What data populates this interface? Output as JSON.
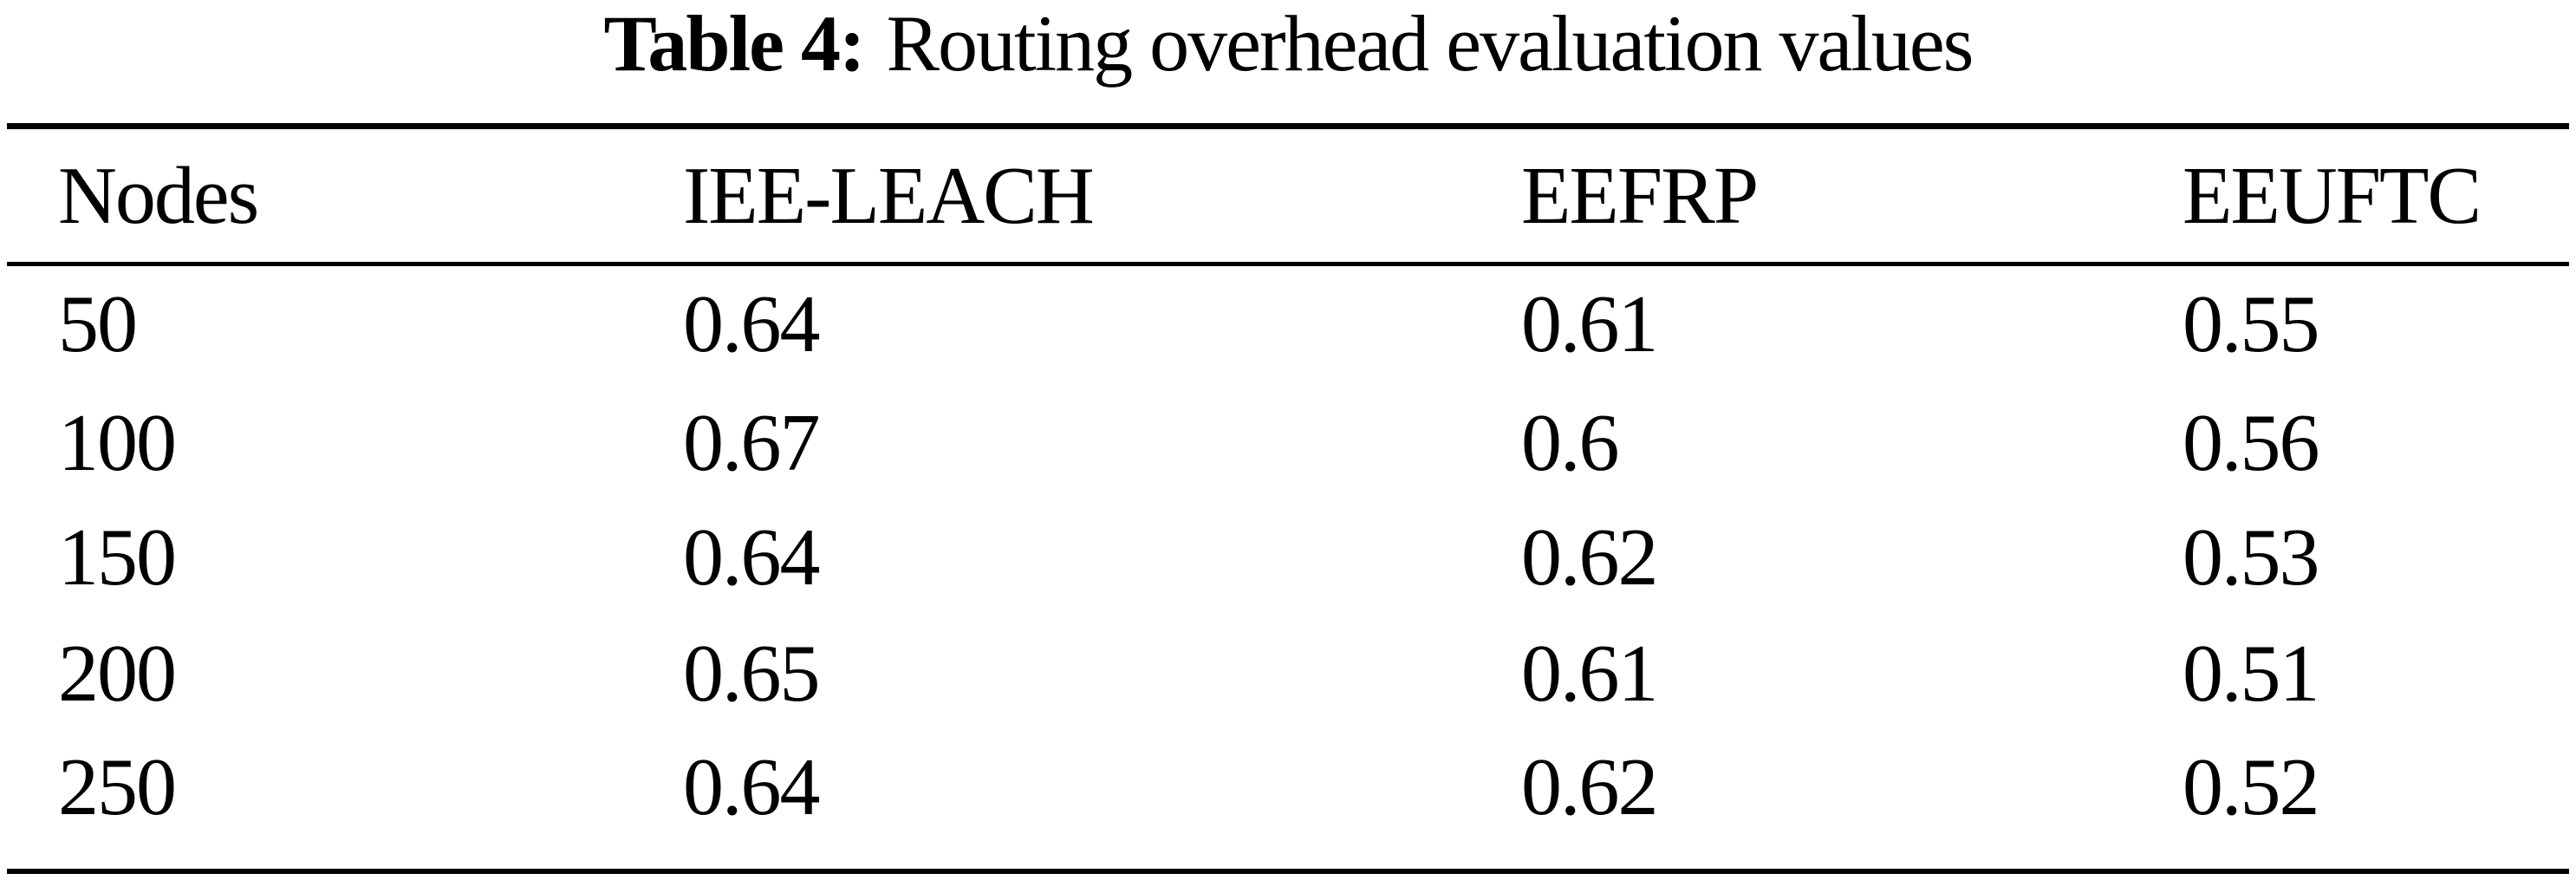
{
  "page": {
    "background_color": "#ffffff",
    "text_color": "#000000"
  },
  "caption": {
    "label": "Table 4:",
    "text": "Routing overhead evaluation values"
  },
  "table": {
    "columns": [
      "Nodes",
      "IEE-LEACH",
      "EEFRP",
      "EEUFTC"
    ],
    "rows": [
      [
        "50",
        "0.64",
        "0.61",
        "0.55"
      ],
      [
        "100",
        "0.67",
        "0.6",
        "0.56"
      ],
      [
        "150",
        "0.64",
        "0.62",
        "0.53"
      ],
      [
        "200",
        "0.65",
        "0.61",
        "0.51"
      ],
      [
        "250",
        "0.64",
        "0.62",
        "0.52"
      ]
    ]
  },
  "chart_data": {
    "type": "table",
    "title": "Table 4: Routing overhead evaluation values",
    "columns": [
      "Nodes",
      "IEE-LEACH",
      "EEFRP",
      "EEUFTC"
    ],
    "rows": [
      [
        50,
        0.64,
        0.61,
        0.55
      ],
      [
        100,
        0.67,
        0.6,
        0.56
      ],
      [
        150,
        0.64,
        0.62,
        0.53
      ],
      [
        200,
        0.65,
        0.61,
        0.51
      ],
      [
        250,
        0.64,
        0.62,
        0.52
      ]
    ]
  }
}
